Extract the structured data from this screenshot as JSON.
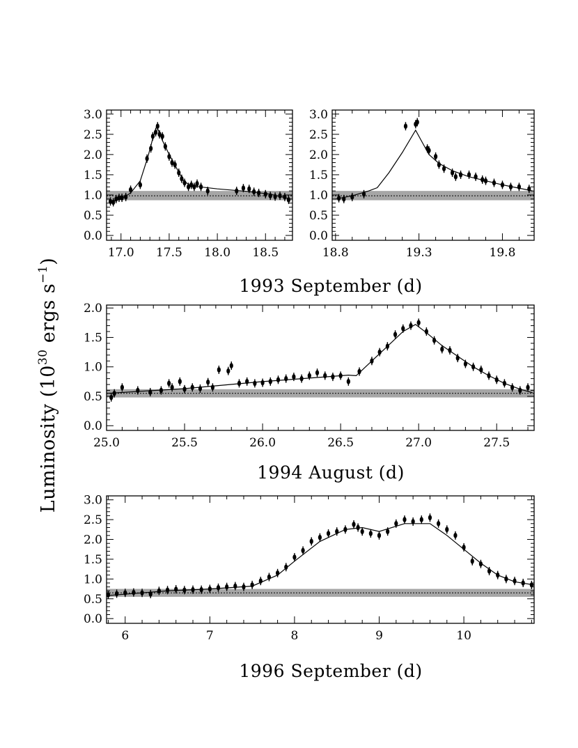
{
  "figure": {
    "ylabel": {
      "prefix": "Luminosity (10",
      "exp1": "30",
      "mid": " ergs s",
      "exp2": "−1",
      "suffix": ")"
    }
  },
  "chart_data": [
    {
      "type": "scatter",
      "panel": "1993 September left",
      "title": "",
      "xlabel": "",
      "ylabel": "Luminosity (10^30 ergs s^-1)",
      "xlim": [
        16.85,
        18.78
      ],
      "ylim": [
        -0.12,
        3.1
      ],
      "xticks": [
        17.0,
        17.5,
        18.0,
        18.5
      ],
      "xtick_labels": [
        "17.0",
        "17.5",
        "18.0",
        "18.5"
      ],
      "yticks": [
        0.0,
        0.5,
        1.0,
        1.5,
        2.0,
        2.5,
        3.0
      ],
      "ytick_labels": [
        "0.0",
        "0.5",
        "1.0",
        "1.5",
        "2.0",
        "2.5",
        "3.0"
      ],
      "quiescent_band": [
        0.87,
        1.1
      ],
      "quiescent_level": 0.98,
      "points": [
        [
          16.89,
          0.84
        ],
        [
          16.92,
          0.82
        ],
        [
          16.95,
          0.9
        ],
        [
          16.98,
          0.93
        ],
        [
          17.01,
          0.93
        ],
        [
          17.05,
          0.95
        ],
        [
          17.1,
          1.13
        ],
        [
          17.2,
          1.25
        ],
        [
          17.27,
          1.9
        ],
        [
          17.31,
          2.15
        ],
        [
          17.33,
          2.45
        ],
        [
          17.36,
          2.55
        ],
        [
          17.38,
          2.7
        ],
        [
          17.4,
          2.5
        ],
        [
          17.43,
          2.45
        ],
        [
          17.46,
          2.2
        ],
        [
          17.5,
          1.95
        ],
        [
          17.53,
          1.8
        ],
        [
          17.56,
          1.75
        ],
        [
          17.6,
          1.55
        ],
        [
          17.63,
          1.4
        ],
        [
          17.66,
          1.3
        ],
        [
          17.7,
          1.2
        ],
        [
          17.73,
          1.25
        ],
        [
          17.76,
          1.2
        ],
        [
          17.79,
          1.28
        ],
        [
          17.83,
          1.2
        ],
        [
          17.9,
          1.1
        ],
        [
          18.2,
          1.1
        ],
        [
          18.27,
          1.17
        ],
        [
          18.33,
          1.15
        ],
        [
          18.38,
          1.08
        ],
        [
          18.43,
          1.05
        ],
        [
          18.5,
          1.02
        ],
        [
          18.55,
          0.98
        ],
        [
          18.6,
          0.96
        ],
        [
          18.65,
          0.98
        ],
        [
          18.7,
          0.95
        ],
        [
          18.74,
          0.88
        ]
      ],
      "model": [
        [
          16.88,
          0.83
        ],
        [
          17.0,
          0.9
        ],
        [
          17.1,
          1.05
        ],
        [
          17.2,
          1.35
        ],
        [
          17.28,
          1.95
        ],
        [
          17.33,
          2.4
        ],
        [
          17.37,
          2.7
        ],
        [
          17.43,
          2.35
        ],
        [
          17.5,
          2.0
        ],
        [
          17.58,
          1.65
        ],
        [
          17.65,
          1.35
        ],
        [
          17.72,
          1.23
        ],
        [
          17.82,
          1.2
        ],
        [
          18.0,
          1.15
        ],
        [
          18.3,
          1.09
        ],
        [
          18.55,
          1.02
        ],
        [
          18.76,
          0.9
        ]
      ]
    },
    {
      "type": "scatter",
      "panel": "1993 September right",
      "title": "",
      "xlabel": "1993 September (d)",
      "ylabel": "",
      "xlim": [
        18.78,
        19.99
      ],
      "ylim": [
        -0.12,
        3.1
      ],
      "xticks": [
        18.8,
        19.3,
        19.8
      ],
      "xtick_labels": [
        "18.8",
        "19.3",
        "19.8"
      ],
      "yticks": [
        0.0,
        0.5,
        1.0,
        1.5,
        2.0,
        2.5,
        3.0
      ],
      "ytick_labels": [
        "0.0",
        "0.5",
        "1.0",
        "1.5",
        "2.0",
        "2.5",
        "3.0"
      ],
      "quiescent_band": [
        0.87,
        1.1
      ],
      "quiescent_level": 0.98,
      "points": [
        [
          18.82,
          0.92
        ],
        [
          18.85,
          0.9
        ],
        [
          18.9,
          0.95
        ],
        [
          18.97,
          1.02
        ],
        [
          19.22,
          2.7
        ],
        [
          19.28,
          2.75
        ],
        [
          19.29,
          2.8
        ],
        [
          19.35,
          2.15
        ],
        [
          19.36,
          2.1
        ],
        [
          19.4,
          1.95
        ],
        [
          19.42,
          1.75
        ],
        [
          19.45,
          1.65
        ],
        [
          19.5,
          1.55
        ],
        [
          19.52,
          1.45
        ],
        [
          19.55,
          1.5
        ],
        [
          19.6,
          1.5
        ],
        [
          19.64,
          1.45
        ],
        [
          19.68,
          1.38
        ],
        [
          19.7,
          1.35
        ],
        [
          19.75,
          1.3
        ],
        [
          19.8,
          1.25
        ],
        [
          19.85,
          1.2
        ],
        [
          19.9,
          1.2
        ],
        [
          19.96,
          1.15
        ]
      ],
      "model": [
        [
          18.8,
          0.9
        ],
        [
          18.9,
          0.98
        ],
        [
          19.0,
          1.1
        ],
        [
          19.05,
          1.18
        ],
        [
          19.12,
          1.55
        ],
        [
          19.2,
          2.05
        ],
        [
          19.28,
          2.6
        ],
        [
          19.32,
          2.3
        ],
        [
          19.36,
          2.0
        ],
        [
          19.42,
          1.78
        ],
        [
          19.5,
          1.6
        ],
        [
          19.6,
          1.45
        ],
        [
          19.7,
          1.35
        ],
        [
          19.8,
          1.25
        ],
        [
          19.98,
          1.1
        ]
      ]
    },
    {
      "type": "scatter",
      "panel": "1994 August",
      "title": "",
      "xlabel": "1994 August (d)",
      "ylabel": "",
      "xlim": [
        25.0,
        27.74
      ],
      "ylim": [
        -0.08,
        2.05
      ],
      "xticks": [
        25.0,
        25.5,
        26.0,
        26.5,
        27.0,
        27.5
      ],
      "xtick_labels": [
        "25.0",
        "25.5",
        "26.0",
        "26.5",
        "27.0",
        "27.5"
      ],
      "yticks": [
        0.0,
        0.5,
        1.0,
        1.5,
        2.0
      ],
      "ytick_labels": [
        "0.0",
        "0.5",
        "1.0",
        "1.5",
        "2.0"
      ],
      "quiescent_band": [
        0.48,
        0.62
      ],
      "quiescent_level": 0.55,
      "points": [
        [
          25.03,
          0.48
        ],
        [
          25.05,
          0.55
        ],
        [
          25.1,
          0.65
        ],
        [
          25.2,
          0.6
        ],
        [
          25.28,
          0.57
        ],
        [
          25.35,
          0.6
        ],
        [
          25.4,
          0.72
        ],
        [
          25.42,
          0.65
        ],
        [
          25.47,
          0.75
        ],
        [
          25.5,
          0.62
        ],
        [
          25.55,
          0.65
        ],
        [
          25.6,
          0.63
        ],
        [
          25.65,
          0.74
        ],
        [
          25.68,
          0.65
        ],
        [
          25.72,
          0.95
        ],
        [
          25.78,
          0.93
        ],
        [
          25.8,
          1.02
        ],
        [
          25.85,
          0.72
        ],
        [
          25.9,
          0.75
        ],
        [
          25.95,
          0.72
        ],
        [
          26.0,
          0.73
        ],
        [
          26.05,
          0.75
        ],
        [
          26.1,
          0.78
        ],
        [
          26.15,
          0.8
        ],
        [
          26.2,
          0.83
        ],
        [
          26.25,
          0.8
        ],
        [
          26.3,
          0.85
        ],
        [
          26.35,
          0.9
        ],
        [
          26.4,
          0.85
        ],
        [
          26.45,
          0.83
        ],
        [
          26.5,
          0.85
        ],
        [
          26.55,
          0.75
        ],
        [
          26.62,
          0.92
        ],
        [
          26.7,
          1.1
        ],
        [
          26.75,
          1.25
        ],
        [
          26.8,
          1.35
        ],
        [
          26.85,
          1.55
        ],
        [
          26.9,
          1.65
        ],
        [
          26.95,
          1.7
        ],
        [
          27.0,
          1.75
        ],
        [
          27.05,
          1.6
        ],
        [
          27.1,
          1.45
        ],
        [
          27.15,
          1.3
        ],
        [
          27.2,
          1.28
        ],
        [
          27.25,
          1.15
        ],
        [
          27.3,
          1.05
        ],
        [
          27.35,
          1.0
        ],
        [
          27.4,
          0.95
        ],
        [
          27.45,
          0.85
        ],
        [
          27.5,
          0.78
        ],
        [
          27.55,
          0.72
        ],
        [
          27.6,
          0.65
        ],
        [
          27.65,
          0.6
        ],
        [
          27.7,
          0.65
        ]
      ],
      "model": [
        [
          25.0,
          0.55
        ],
        [
          25.5,
          0.63
        ],
        [
          26.0,
          0.75
        ],
        [
          26.55,
          0.86
        ],
        [
          26.6,
          0.85
        ],
        [
          26.7,
          1.1
        ],
        [
          26.8,
          1.35
        ],
        [
          26.9,
          1.6
        ],
        [
          26.98,
          1.72
        ],
        [
          27.05,
          1.58
        ],
        [
          27.15,
          1.36
        ],
        [
          27.25,
          1.18
        ],
        [
          27.35,
          1.0
        ],
        [
          27.45,
          0.85
        ],
        [
          27.55,
          0.72
        ],
        [
          27.65,
          0.62
        ],
        [
          27.73,
          0.56
        ]
      ]
    },
    {
      "type": "scatter",
      "panel": "1996 September",
      "title": "",
      "xlabel": "1996 September (d)",
      "ylabel": "",
      "xlim": [
        5.78,
        10.83
      ],
      "ylim": [
        -0.12,
        3.1
      ],
      "xticks": [
        6,
        7,
        8,
        9,
        10
      ],
      "xtick_labels": [
        "6",
        "7",
        "8",
        "9",
        "10"
      ],
      "yticks": [
        0.0,
        0.5,
        1.0,
        1.5,
        2.0,
        2.5,
        3.0
      ],
      "ytick_labels": [
        "0.0",
        "0.5",
        "1.0",
        "1.5",
        "2.0",
        "2.5",
        "3.0"
      ],
      "quiescent_band": [
        0.55,
        0.75
      ],
      "quiescent_level": 0.65,
      "points": [
        [
          5.8,
          0.6
        ],
        [
          5.9,
          0.63
        ],
        [
          6.0,
          0.65
        ],
        [
          6.1,
          0.66
        ],
        [
          6.2,
          0.65
        ],
        [
          6.3,
          0.62
        ],
        [
          6.4,
          0.7
        ],
        [
          6.5,
          0.72
        ],
        [
          6.6,
          0.74
        ],
        [
          6.7,
          0.72
        ],
        [
          6.8,
          0.73
        ],
        [
          6.9,
          0.73
        ],
        [
          7.0,
          0.75
        ],
        [
          7.1,
          0.78
        ],
        [
          7.2,
          0.8
        ],
        [
          7.3,
          0.82
        ],
        [
          7.4,
          0.8
        ],
        [
          7.5,
          0.85
        ],
        [
          7.6,
          0.95
        ],
        [
          7.7,
          1.05
        ],
        [
          7.8,
          1.15
        ],
        [
          7.9,
          1.3
        ],
        [
          8.0,
          1.55
        ],
        [
          8.1,
          1.72
        ],
        [
          8.2,
          1.95
        ],
        [
          8.3,
          2.05
        ],
        [
          8.4,
          2.15
        ],
        [
          8.5,
          2.2
        ],
        [
          8.6,
          2.25
        ],
        [
          8.7,
          2.38
        ],
        [
          8.75,
          2.3
        ],
        [
          8.8,
          2.2
        ],
        [
          8.9,
          2.15
        ],
        [
          9.0,
          2.1
        ],
        [
          9.1,
          2.2
        ],
        [
          9.2,
          2.4
        ],
        [
          9.3,
          2.5
        ],
        [
          9.4,
          2.45
        ],
        [
          9.5,
          2.5
        ],
        [
          9.6,
          2.55
        ],
        [
          9.7,
          2.4
        ],
        [
          9.8,
          2.25
        ],
        [
          9.9,
          2.1
        ],
        [
          10.0,
          1.8
        ],
        [
          10.1,
          1.45
        ],
        [
          10.2,
          1.38
        ],
        [
          10.3,
          1.2
        ],
        [
          10.4,
          1.1
        ],
        [
          10.5,
          1.0
        ],
        [
          10.6,
          0.95
        ],
        [
          10.7,
          0.9
        ],
        [
          10.8,
          0.85
        ]
      ],
      "model": [
        [
          5.78,
          0.58
        ],
        [
          6.5,
          0.7
        ],
        [
          7.0,
          0.75
        ],
        [
          7.5,
          0.82
        ],
        [
          7.8,
          1.1
        ],
        [
          8.0,
          1.45
        ],
        [
          8.3,
          1.95
        ],
        [
          8.6,
          2.25
        ],
        [
          8.8,
          2.3
        ],
        [
          9.0,
          2.2
        ],
        [
          9.3,
          2.4
        ],
        [
          9.6,
          2.4
        ],
        [
          9.8,
          2.1
        ],
        [
          10.0,
          1.75
        ],
        [
          10.2,
          1.4
        ],
        [
          10.4,
          1.1
        ],
        [
          10.6,
          0.93
        ],
        [
          10.83,
          0.85
        ]
      ]
    }
  ]
}
